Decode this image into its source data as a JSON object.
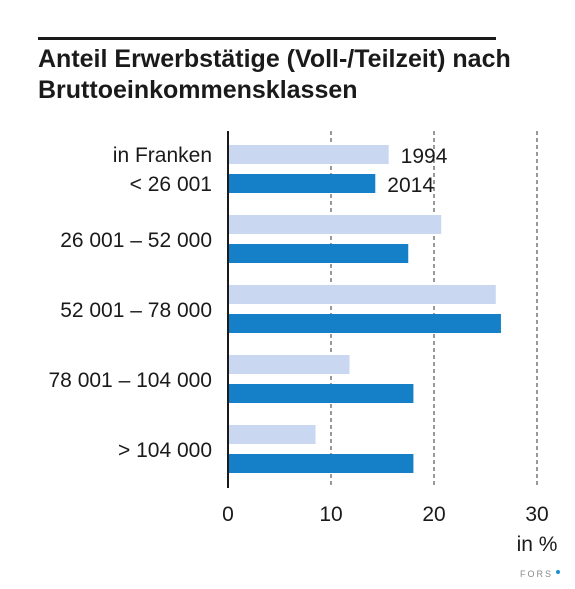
{
  "title": "Anteil Erwerbstätige (Voll-/Teilzeit) nach Bruttoeinkommensklassen",
  "brand": {
    "text": "FORS",
    "dot_color": "#1a8fd4"
  },
  "chart_data": {
    "type": "bar",
    "orientation": "horizontal",
    "title": "Anteil Erwerbstätige (Voll-/Teilzeit) nach Bruttoeinkommensklassen",
    "category_header": "in Franken",
    "categories": [
      "< 26 001",
      "26 001 – 52 000",
      "52 001 – 78 000",
      "78 001 – 104 000",
      "> 104 000"
    ],
    "series": [
      {
        "name": "1994",
        "values": [
          15.6,
          20.7,
          26.0,
          11.8,
          8.5
        ],
        "color": "#c9d7f1"
      },
      {
        "name": "2014",
        "values": [
          14.3,
          17.5,
          26.5,
          18.0,
          18.0
        ],
        "color": "#1580c8"
      }
    ],
    "xlim": [
      0,
      31
    ],
    "xticks": [
      0,
      10,
      20,
      30
    ],
    "xlabel": "in %",
    "grid": "dashed vertical lines at 10, 20, 30",
    "legend": "inline labels next to first category bars"
  }
}
